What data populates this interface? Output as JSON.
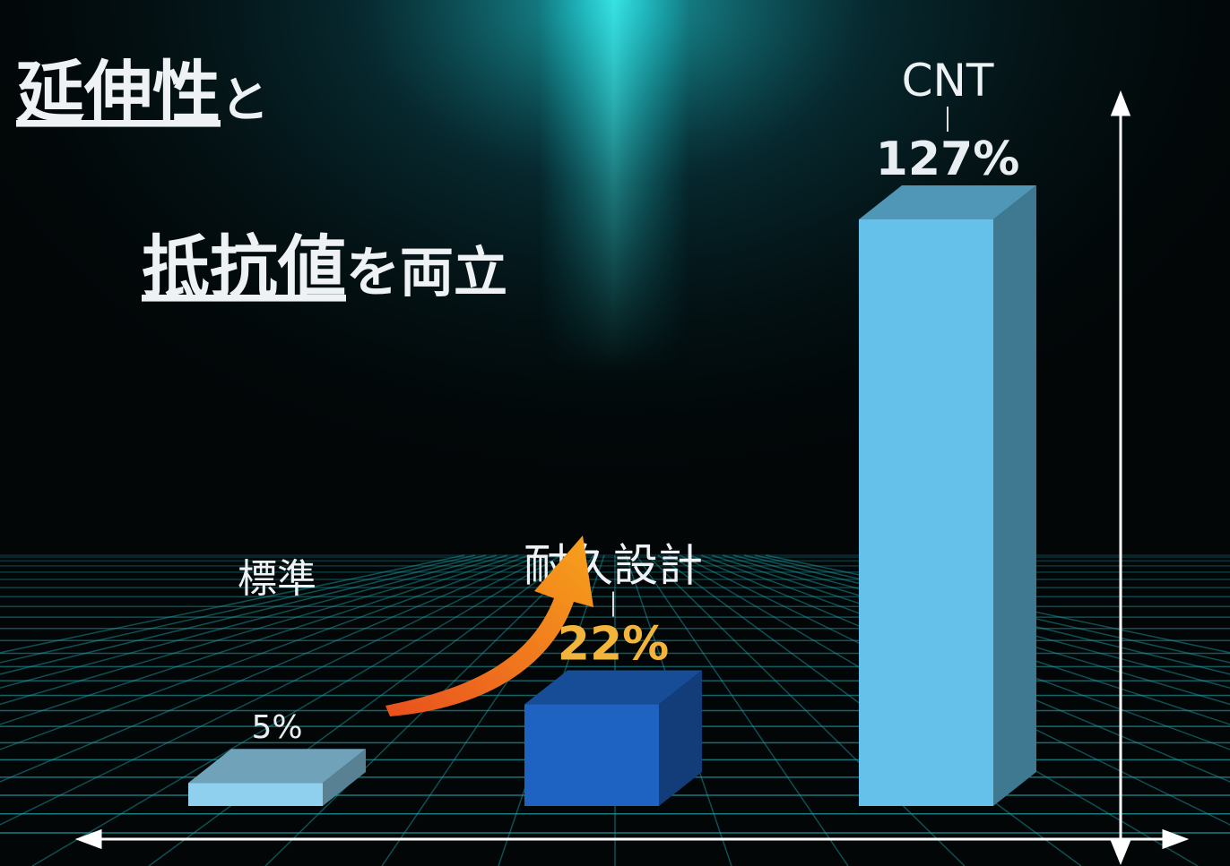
{
  "chart_data": {
    "type": "bar3d",
    "title_parts": [
      {
        "text": "延伸性",
        "emphasis": true
      },
      {
        "text": "と",
        "emphasis": false
      },
      {
        "text": "抵抗値",
        "emphasis": true
      },
      {
        "text": "を両立",
        "emphasis": false
      }
    ],
    "categories": [
      "標準",
      "耐久設計",
      "CNT"
    ],
    "values": [
      5,
      22,
      127
    ],
    "value_labels": [
      "5%",
      "22%",
      "127%"
    ],
    "colors": [
      "#8fd0ef",
      "#1e62c2",
      "#66c1ea"
    ],
    "value_label_colors": [
      "#e8eef2",
      "#f2b43a",
      "#e8eef2"
    ]
  }
}
